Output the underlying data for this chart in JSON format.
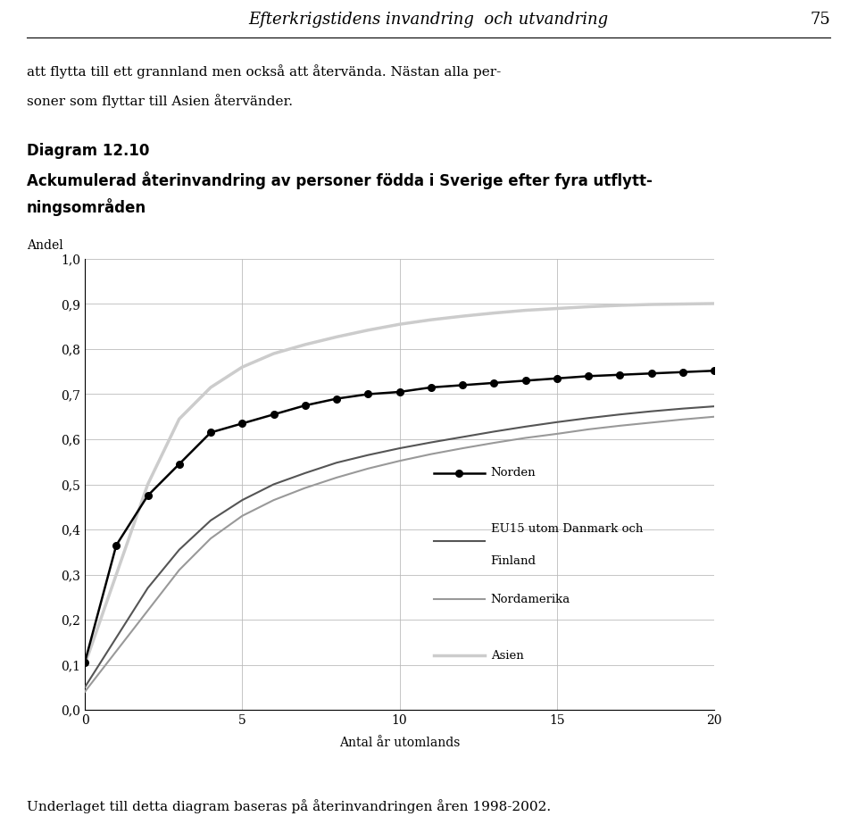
{
  "title_line1": "Diagram 12.10",
  "title_line2a": "Ackumulerad återinvandring av personer födda i Sverige efter fyra utflytt-",
  "title_line2b": "ningsområden",
  "header": "Efterkrigstidens invandring  och utvandring",
  "header_page": "75",
  "ylabel": "Andel",
  "xlabel": "Antal år utomlands",
  "footer": "Underlaget till detta diagram baseras på återinvandringen åren 1998-2002.",
  "text1": "att flytta till ett grannland men också att återvända. Nästan alla per-",
  "text2": "soner som flyttar till Asien återvänder.",
  "ylim": [
    0.0,
    1.0
  ],
  "xlim": [
    0,
    20
  ],
  "yticks": [
    0.0,
    0.1,
    0.2,
    0.3,
    0.4,
    0.5,
    0.6,
    0.7,
    0.8,
    0.9,
    1.0
  ],
  "ytick_labels": [
    "0,0",
    "0,1",
    "0,2",
    "0,3",
    "0,4",
    "0,5",
    "0,6",
    "0,7",
    "0,8",
    "0,9",
    "1,0"
  ],
  "xticks": [
    0,
    5,
    10,
    15,
    20
  ],
  "norden_x": [
    0,
    1,
    2,
    3,
    4,
    5,
    6,
    7,
    8,
    9,
    10,
    11,
    12,
    13,
    14,
    15,
    16,
    17,
    18,
    19,
    20
  ],
  "norden_y": [
    0.105,
    0.365,
    0.475,
    0.545,
    0.615,
    0.635,
    0.655,
    0.675,
    0.69,
    0.7,
    0.705,
    0.715,
    0.72,
    0.725,
    0.73,
    0.735,
    0.74,
    0.743,
    0.746,
    0.749,
    0.752
  ],
  "eu15_x": [
    0,
    1,
    2,
    3,
    4,
    5,
    6,
    7,
    8,
    9,
    10,
    11,
    12,
    13,
    14,
    15,
    16,
    17,
    18,
    19,
    20
  ],
  "eu15_y": [
    0.05,
    0.16,
    0.27,
    0.355,
    0.42,
    0.465,
    0.5,
    0.525,
    0.548,
    0.565,
    0.58,
    0.593,
    0.605,
    0.617,
    0.628,
    0.638,
    0.647,
    0.655,
    0.662,
    0.668,
    0.673
  ],
  "nordamerika_x": [
    0,
    1,
    2,
    3,
    4,
    5,
    6,
    7,
    8,
    9,
    10,
    11,
    12,
    13,
    14,
    15,
    16,
    17,
    18,
    19,
    20
  ],
  "nordamerika_y": [
    0.04,
    0.13,
    0.22,
    0.31,
    0.38,
    0.43,
    0.465,
    0.492,
    0.515,
    0.535,
    0.552,
    0.567,
    0.58,
    0.592,
    0.603,
    0.612,
    0.622,
    0.63,
    0.637,
    0.644,
    0.65
  ],
  "asien_x": [
    0,
    1,
    2,
    3,
    4,
    5,
    6,
    7,
    8,
    9,
    10,
    11,
    12,
    13,
    14,
    15,
    16,
    17,
    18,
    19,
    20
  ],
  "asien_y": [
    0.1,
    0.3,
    0.5,
    0.645,
    0.715,
    0.76,
    0.79,
    0.81,
    0.827,
    0.842,
    0.855,
    0.865,
    0.873,
    0.88,
    0.886,
    0.89,
    0.894,
    0.897,
    0.899,
    0.9,
    0.901
  ],
  "norden_color": "#000000",
  "eu15_color": "#555555",
  "nordamerika_color": "#999999",
  "asien_color": "#cccccc",
  "background_color": "#ffffff",
  "legend_norden": "Norden",
  "legend_eu15": "EU15 utom Danmark och\nFinland",
  "legend_nordamerika": "Nordamerika",
  "legend_asien": "Asien"
}
